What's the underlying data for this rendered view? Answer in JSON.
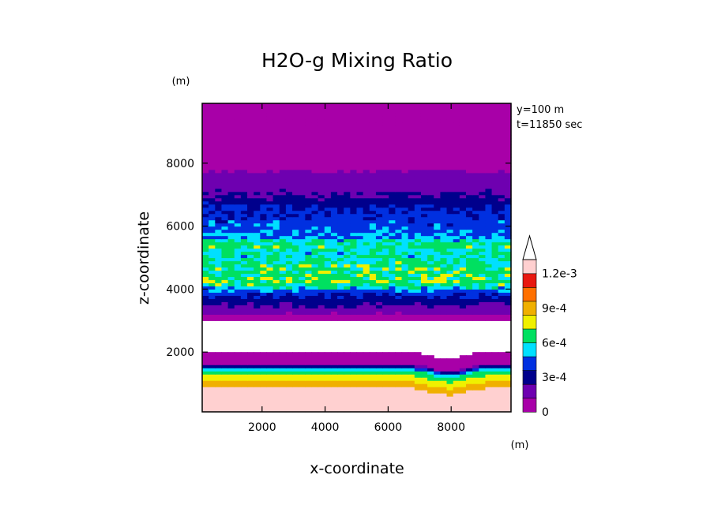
{
  "chart_data": {
    "type": "heatmap",
    "title": "H2O-g Mixing Ratio",
    "xlabel": "x-coordinate",
    "ylabel": "z-coordinate",
    "x_unit": "(m)",
    "y_unit": "(m)",
    "annotations": [
      "y=100 m",
      "t=11850 sec"
    ],
    "xlim": [
      100,
      9900
    ],
    "ylim": [
      100,
      9900
    ],
    "x_ticks": [
      2000,
      4000,
      6000,
      8000
    ],
    "y_ticks": [
      2000,
      4000,
      6000,
      8000
    ],
    "x_tick_labels": [
      "2000",
      "4000",
      "6000",
      "8000"
    ],
    "y_tick_labels": [
      "2000",
      "4000",
      "6000",
      "8000"
    ],
    "colorbar": {
      "levels": [
        0,
        0.00015,
        0.0003,
        0.00045,
        0.0006,
        0.00075,
        0.0009,
        0.00105,
        0.0012
      ],
      "tick_labels": [
        "0",
        "3e-4",
        "6e-4",
        "9e-4",
        "1.2e-3"
      ],
      "tick_values": [
        0,
        0.0003,
        0.0006,
        0.0009,
        0.0012
      ],
      "colors": [
        "#a800a8",
        "#6e00b0",
        "#00008c",
        "#0030e0",
        "#00e0ff",
        "#00e060",
        "#f0f000",
        "#f0b000",
        "#ff7000",
        "#e81810",
        "#ffd0d0"
      ],
      "extend": "max"
    },
    "profile": {
      "z": [
        100,
        800,
        1000,
        1200,
        1400,
        1550,
        1650,
        2000,
        3000,
        3100,
        3300,
        3600,
        3900,
        4200,
        4500,
        4800,
        5100,
        5400,
        5700,
        6000,
        6300,
        6600,
        6900,
        7300,
        7700,
        8100,
        8700,
        9900
      ],
      "value": [
        0.00125,
        0.00125,
        0.0011,
        0.00095,
        0.0008,
        0.0004,
        5e-05,
        0,
        0,
        8e-05,
        0.0002,
        0.00035,
        0.0005,
        0.00085,
        0.0008,
        0.0008,
        0.0007,
        0.0008,
        0.0006,
        0.00055,
        0.0005,
        0.00045,
        0.00032,
        0.00022,
        0.00016,
        8e-05,
        1e-05,
        1e-05
      ]
    }
  }
}
